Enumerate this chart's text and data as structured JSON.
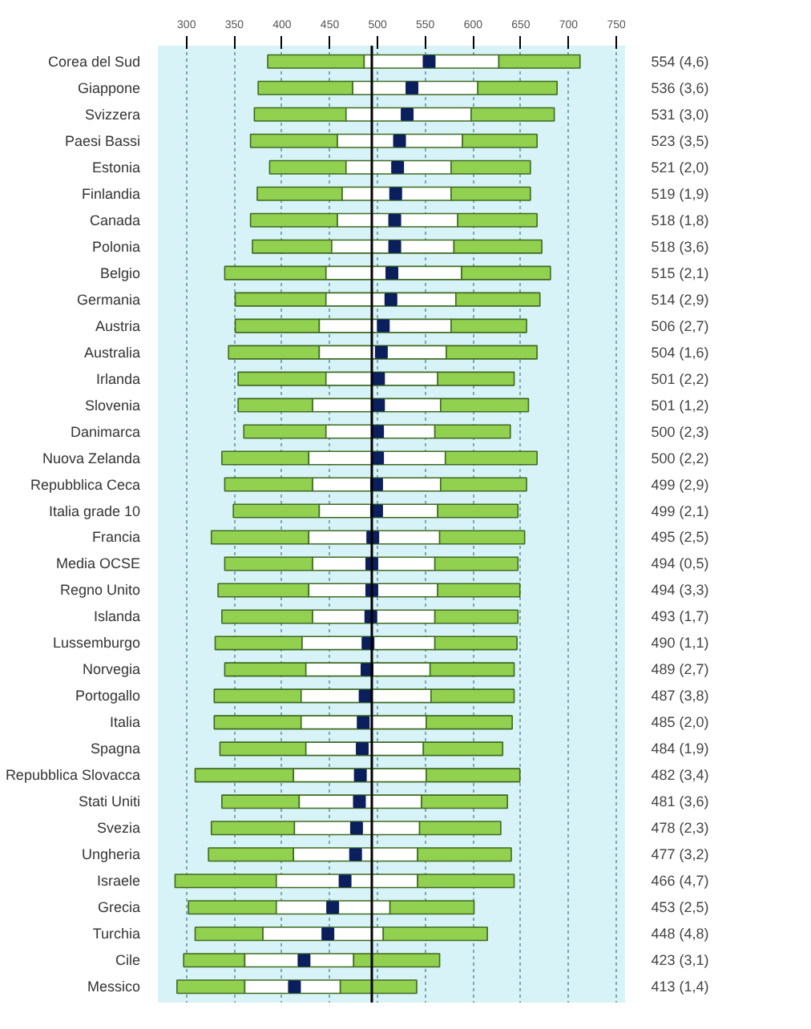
{
  "chart_data": {
    "type": "bar",
    "orientation": "horizontal",
    "categories": [
      "Corea del Sud",
      "Giappone",
      "Svizzera",
      "Paesi Bassi",
      "Estonia",
      "Finlandia",
      "Canada",
      "Polonia",
      "Belgio",
      "Germania",
      "Austria",
      "Australia",
      "Irlanda",
      "Slovenia",
      "Danimarca",
      "Nuova Zelanda",
      "Repubblica Ceca",
      "Italia grade 10",
      "Francia",
      "Media OCSE",
      "Regno Unito",
      "Islanda",
      "Lussemburgo",
      "Norvegia",
      "Portogallo",
      "Italia",
      "Spagna",
      "Repubblica Slovacca",
      "Stati Uniti",
      "Svezia",
      "Ungheria",
      "Israele",
      "Grecia",
      "Turchia",
      "Cile",
      "Messico"
    ],
    "series": [
      {
        "color": "#92d050",
        "base": [
          385,
          375,
          371,
          367,
          387,
          374,
          367,
          369,
          340,
          351,
          351,
          344,
          354,
          354,
          360,
          337,
          340,
          349,
          326,
          340,
          333,
          337,
          330,
          340,
          329,
          329,
          335,
          309,
          337,
          326,
          323,
          288,
          302,
          309,
          297,
          290
        ],
        "values": [
          101,
          99,
          96,
          91,
          80,
          89,
          91,
          83,
          106,
          95,
          88,
          95,
          92,
          78,
          86,
          91,
          92,
          90,
          102,
          92,
          95,
          95,
          91,
          85,
          91,
          91,
          90,
          103,
          81,
          87,
          89,
          106,
          92,
          71,
          64,
          71
        ]
      },
      {
        "color": "#ffffff",
        "base": [
          486,
          474,
          467,
          458,
          467,
          463,
          458,
          452,
          446,
          446,
          439,
          439,
          446,
          432,
          446,
          428,
          432,
          439,
          428,
          432,
          428,
          432,
          421,
          425,
          420,
          420,
          425,
          412,
          418,
          413,
          412,
          394,
          394,
          380,
          361,
          361
        ],
        "values": [
          141,
          131,
          131,
          131,
          110,
          114,
          126,
          128,
          142,
          136,
          138,
          133,
          117,
          134,
          114,
          143,
          134,
          124,
          137,
          128,
          135,
          128,
          139,
          130,
          136,
          131,
          123,
          139,
          128,
          131,
          130,
          148,
          119,
          126,
          114,
          100
        ]
      },
      {
        "color": "#92d050",
        "base": [
          627,
          605,
          598,
          589,
          577,
          577,
          584,
          580,
          588,
          582,
          577,
          572,
          563,
          566,
          560,
          571,
          566,
          563,
          565,
          560,
          563,
          560,
          560,
          555,
          556,
          551,
          548,
          551,
          546,
          544,
          542,
          542,
          513,
          506,
          475,
          461
        ],
        "values": [
          85,
          83,
          87,
          78,
          83,
          83,
          83,
          92,
          93,
          88,
          79,
          95,
          80,
          92,
          79,
          96,
          90,
          84,
          89,
          87,
          86,
          87,
          86,
          88,
          87,
          90,
          83,
          98,
          90,
          85,
          98,
          101,
          88,
          109,
          90,
          80
        ]
      },
      {
        "type": "scatter",
        "color": "#0b1f5c",
        "values": [
          554,
          536,
          531,
          523,
          521,
          519,
          518,
          518,
          515,
          514,
          506,
          504,
          501,
          501,
          500,
          500,
          499,
          499,
          495,
          494,
          494,
          493,
          490,
          489,
          487,
          485,
          484,
          482,
          481,
          478,
          477,
          466,
          453,
          448,
          423,
          413
        ],
        "value_labels": [
          "554 (4,6)",
          "536 (3,6)",
          "531 (3,0)",
          "523 (3,5)",
          "521 (2,0)",
          "519 (1,9)",
          "518 (1,8)",
          "518 (3,6)",
          "515 (2,1)",
          "514 (2,9)",
          "506 (2,7)",
          "504 (1,6)",
          "501 (2,2)",
          "501 (1,2)",
          "500 (2,3)",
          "500 (2,2)",
          "499 (2,9)",
          "499 (2,1)",
          "495 (2,5)",
          "494 (0,5)",
          "494 (3,3)",
          "493 (1,7)",
          "490 (1,1)",
          "489 (2,7)",
          "487 (3,8)",
          "485 (2,0)",
          "484 (1,9)",
          "482 (3,4)",
          "481 (3,6)",
          "478 (2,3)",
          "477 (3,2)",
          "466 (4,7)",
          "453 (2,5)",
          "448 (4,8)",
          "423 (3,1)",
          "413 (1,4)"
        ]
      }
    ],
    "marker": "square",
    "xlim": [
      270,
      760
    ],
    "xticks": [
      300,
      350,
      400,
      450,
      500,
      550,
      600,
      650,
      700,
      750
    ],
    "grid": "x",
    "ref_lines": [
      {
        "axis": "x",
        "value": 494,
        "color": "#000000"
      }
    ]
  }
}
